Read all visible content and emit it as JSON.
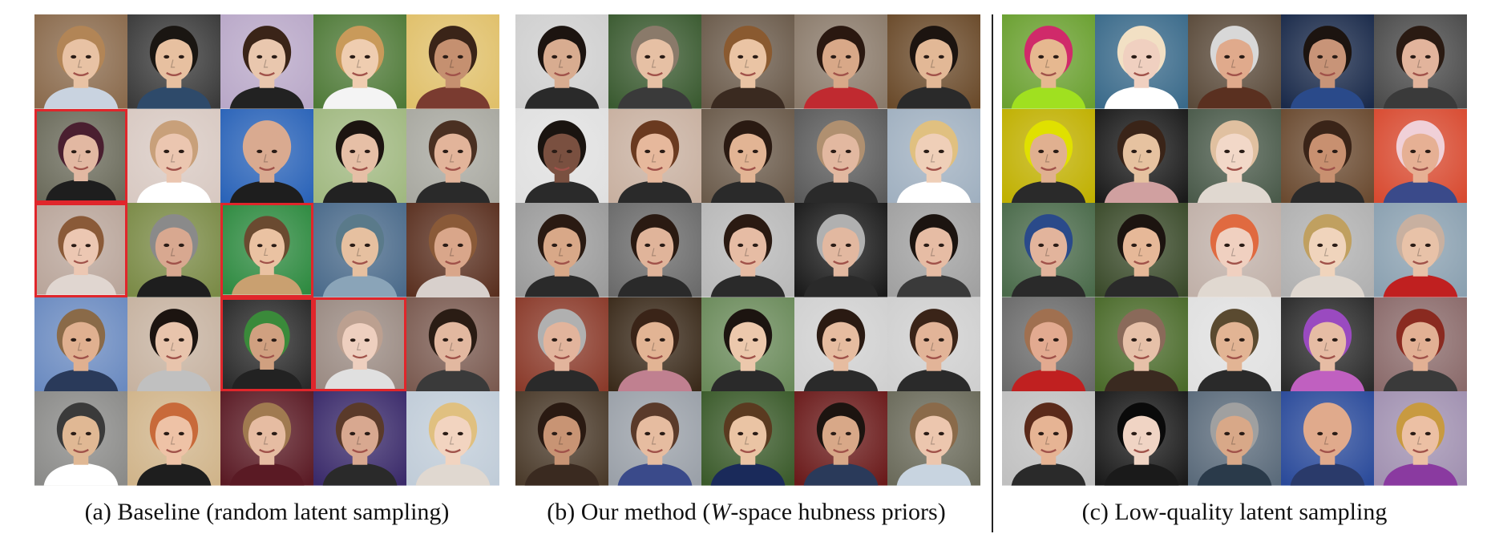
{
  "panels": [
    {
      "id": "a",
      "caption": "(a) Baseline (random latent sampling)",
      "flagged_color": "#e0262b",
      "tiles": [
        {
          "bg": "#8a6a4c",
          "skin": "#e8c2a4",
          "hair": "#b28556",
          "cloth": "#c9d3e0",
          "flag": false
        },
        {
          "bg": "#3a3a3a",
          "skin": "#e7c0a0",
          "hair": "#1a1612",
          "cloth": "#2e4a6a",
          "flag": false
        },
        {
          "bg": "#b9a8c8",
          "skin": "#e9c7ae",
          "hair": "#3a2418",
          "cloth": "#222222",
          "flag": false
        },
        {
          "bg": "#4f7a38",
          "skin": "#efcdb0",
          "hair": "#c99a5a",
          "cloth": "#f4f4f4",
          "flag": false
        },
        {
          "bg": "#e0c06a",
          "skin": "#c59070",
          "hair": "#3a2418",
          "cloth": "#7a3b30",
          "flag": false
        },
        {
          "bg": "#6b6b5b",
          "skin": "#e2b8a2",
          "hair": "#4a1f30",
          "cloth": "#1e1e1e",
          "flag": true
        },
        {
          "bg": "#d8c9c2",
          "skin": "#ebc6b0",
          "hair": "#c8a07a",
          "cloth": "#ffffff",
          "flag": false
        },
        {
          "bg": "#2a63b8",
          "skin": "#d9aa90",
          "hair": "#d9aa90",
          "cloth": "#1e1e1e",
          "flag": false
        },
        {
          "bg": "#a0b880",
          "skin": "#e6bfa6",
          "hair": "#1c1410",
          "cloth": "#222222",
          "flag": false
        },
        {
          "bg": "#a8a8a0",
          "skin": "#e2b49a",
          "hair": "#4a3022",
          "cloth": "#2a2a2a",
          "flag": false
        },
        {
          "bg": "#b9a59a",
          "skin": "#ecc7b2",
          "hair": "#8a5a38",
          "cloth": "#e0d6d0",
          "flag": true
        },
        {
          "bg": "#7a8a46",
          "skin": "#d8a890",
          "hair": "#8a8a8a",
          "cloth": "#1e1e1e",
          "flag": false
        },
        {
          "bg": "#2e8a40",
          "skin": "#eac2a2",
          "hair": "#6a4a30",
          "cloth": "#c9a070",
          "flag": true
        },
        {
          "bg": "#4a6a8a",
          "skin": "#e6c0a0",
          "hair": "#5a7a8a",
          "cloth": "#8aa4b8",
          "flag": false
        },
        {
          "bg": "#5a3020",
          "skin": "#d9a68a",
          "hair": "#8a5a38",
          "cloth": "#d8d0cc",
          "flag": false
        },
        {
          "bg": "#6a8ac0",
          "skin": "#e0b090",
          "hair": "#8a6a48",
          "cloth": "#2a3a5a",
          "flag": false
        },
        {
          "bg": "#c6b2a0",
          "skin": "#e8c4ac",
          "hair": "#1c1410",
          "cloth": "#c0c0c0",
          "flag": false
        },
        {
          "bg": "#2a2a2a",
          "skin": "#d0a080",
          "hair": "#3a8a3a",
          "cloth": "#222222",
          "flag": true
        },
        {
          "bg": "#9a8a82",
          "skin": "#eecfbf",
          "hair": "#bca090",
          "cloth": "#e0e0e0",
          "flag": true
        },
        {
          "bg": "#7a5a50",
          "skin": "#e2b8a0",
          "hair": "#2a1c14",
          "cloth": "#3a3a3a",
          "flag": false
        },
        {
          "bg": "#8a8a88",
          "skin": "#e0b894",
          "hair": "#3a3a3a",
          "cloth": "#ffffff",
          "flag": false
        },
        {
          "bg": "#d0b48a",
          "skin": "#eec2a6",
          "hair": "#c86a3a",
          "cloth": "#1e1e1e",
          "flag": false
        },
        {
          "bg": "#5a1a24",
          "skin": "#e6bca2",
          "hair": "#a07a50",
          "cloth": "#5a1a24",
          "flag": false
        },
        {
          "bg": "#3a2a6a",
          "skin": "#d8a890",
          "hair": "#5a3a2a",
          "cloth": "#2a2a2a",
          "flag": false
        },
        {
          "bg": "#c0ccd8",
          "skin": "#f2d4c0",
          "hair": "#e0c080",
          "cloth": "#e0d8d0",
          "flag": false
        }
      ]
    },
    {
      "id": "b",
      "caption_prefix": "(b) Our method (",
      "caption_italic": "W",
      "caption_suffix": "-space hubness priors)",
      "tiles": [
        {
          "bg": "#cfcfcf",
          "skin": "#d8ac90",
          "hair": "#1c1410",
          "cloth": "#2a2a2a",
          "flag": false
        },
        {
          "bg": "#3a5a30",
          "skin": "#e6c0a4",
          "hair": "#8a7a6a",
          "cloth": "#3a3a3a",
          "flag": false
        },
        {
          "bg": "#6a5a4a",
          "skin": "#eac4a4",
          "hair": "#8a5a30",
          "cloth": "#3a2a20",
          "flag": false
        },
        {
          "bg": "#8a7a6a",
          "skin": "#d8a888",
          "hair": "#2a1810",
          "cloth": "#c02a30",
          "flag": false
        },
        {
          "bg": "#6a4a2a",
          "skin": "#e2b896",
          "hair": "#1c1410",
          "cloth": "#2a2a2a",
          "flag": false
        },
        {
          "bg": "#e0e0e0",
          "skin": "#7a5040",
          "hair": "#1a1410",
          "cloth": "#2a2a2a",
          "flag": false
        },
        {
          "bg": "#c8b0a0",
          "skin": "#e6b89c",
          "hair": "#6a3a20",
          "cloth": "#2a2a2a",
          "flag": false
        },
        {
          "bg": "#6a5a4a",
          "skin": "#e2b494",
          "hair": "#2a1a12",
          "cloth": "#2a2a2a",
          "flag": false
        },
        {
          "bg": "#5a5a5a",
          "skin": "#e2b8a0",
          "hair": "#b09070",
          "cloth": "#2a2a2a",
          "flag": false
        },
        {
          "bg": "#a0b0c0",
          "skin": "#efcfb8",
          "hair": "#e0c080",
          "cloth": "#ffffff",
          "flag": false
        },
        {
          "bg": "#9a9a9a",
          "skin": "#d8a888",
          "hair": "#2a1a12",
          "cloth": "#2a2a2a",
          "flag": false
        },
        {
          "bg": "#6a6a6a",
          "skin": "#e0b49a",
          "hair": "#2a1a12",
          "cloth": "#2a2a2a",
          "flag": false
        },
        {
          "bg": "#b8b8b8",
          "skin": "#e6bca4",
          "hair": "#2a1a12",
          "cloth": "#2a2a2a",
          "flag": false
        },
        {
          "bg": "#1a1a1a",
          "skin": "#e2b8a0",
          "hair": "#b0b0b0",
          "cloth": "#2a2a2a",
          "flag": false
        },
        {
          "bg": "#a0a0a0",
          "skin": "#e6bca4",
          "hair": "#1c1410",
          "cloth": "#3a3a3a",
          "flag": false
        },
        {
          "bg": "#8a3a2a",
          "skin": "#e2b49c",
          "hair": "#b0b0b0",
          "cloth": "#2a2a2a",
          "flag": false
        },
        {
          "bg": "#3a2a1a",
          "skin": "#e2b494",
          "hair": "#3a2418",
          "cloth": "#c08090",
          "flag": false
        },
        {
          "bg": "#6a8a5a",
          "skin": "#ecc8ac",
          "hair": "#1c1410",
          "cloth": "#2a2a2a",
          "flag": false
        },
        {
          "bg": "#d0d0d0",
          "skin": "#e6bca0",
          "hair": "#2a1a12",
          "cloth": "#2a2a2a",
          "flag": false
        },
        {
          "bg": "#cfcfcf",
          "skin": "#e2b498",
          "hair": "#3a2418",
          "cloth": "#2a2a2a",
          "flag": false
        },
        {
          "bg": "#4a3a2a",
          "skin": "#c89474",
          "hair": "#2a1a12",
          "cloth": "#3a2a20",
          "flag": false
        },
        {
          "bg": "#9aa0a8",
          "skin": "#e6bca0",
          "hair": "#5a3a2a",
          "cloth": "#3a4a8a",
          "flag": false
        },
        {
          "bg": "#3a5a2a",
          "skin": "#eac4a4",
          "hair": "#5a3a20",
          "cloth": "#1a2a5a",
          "flag": false
        },
        {
          "bg": "#6a1a1a",
          "skin": "#d8a888",
          "hair": "#1c1410",
          "cloth": "#2a3a5a",
          "flag": false
        },
        {
          "bg": "#6a6a5a",
          "skin": "#ecc6ae",
          "hair": "#8a6a4a",
          "cloth": "#c8d4e0",
          "flag": false
        }
      ]
    },
    {
      "id": "c",
      "caption": "(c) Low-quality latent sampling",
      "tiles": [
        {
          "bg": "#6aa030",
          "skin": "#e6b890",
          "hair": "#d02a6a",
          "cloth": "#a0e020",
          "flag": false
        },
        {
          "bg": "#3a6a8a",
          "skin": "#f0d0c0",
          "hair": "#f2e0c4",
          "cloth": "#ffffff",
          "flag": false
        },
        {
          "bg": "#5a4a3a",
          "skin": "#e0aa8c",
          "hair": "#d8d8d8",
          "cloth": "#5a3020",
          "flag": false
        },
        {
          "bg": "#1a2a4a",
          "skin": "#c89478",
          "hair": "#1c1410",
          "cloth": "#2a4a8a",
          "flag": false
        },
        {
          "bg": "#4a4a4a",
          "skin": "#e2b49c",
          "hair": "#2a1a12",
          "cloth": "#3a3a3a",
          "flag": false
        },
        {
          "bg": "#c0b000",
          "skin": "#e0b090",
          "hair": "#e0e000",
          "cloth": "#2a2a2a",
          "flag": false
        },
        {
          "bg": "#1a1a1a",
          "skin": "#e6c2a0",
          "hair": "#3a2418",
          "cloth": "#d0a0a0",
          "flag": false
        },
        {
          "bg": "#4a5a4a",
          "skin": "#f2d8c8",
          "hair": "#e0c0a0",
          "cloth": "#e0d8d0",
          "flag": false
        },
        {
          "bg": "#6a4a30",
          "skin": "#c89070",
          "hair": "#3a2418",
          "cloth": "#2a2a2a",
          "flag": false
        },
        {
          "bg": "#d84a30",
          "skin": "#e6b094",
          "hair": "#f0d0d8",
          "cloth": "#3a4a8a",
          "flag": false
        },
        {
          "bg": "#4a6a4a",
          "skin": "#e2b49c",
          "hair": "#2a4a8a",
          "cloth": "#2a2a2a",
          "flag": false
        },
        {
          "bg": "#3a4a2a",
          "skin": "#e6b898",
          "hair": "#1c1410",
          "cloth": "#2a2a2a",
          "flag": false
        },
        {
          "bg": "#c0b0a8",
          "skin": "#f0d0c0",
          "hair": "#e06a40",
          "cloth": "#e0d8d0",
          "flag": false
        },
        {
          "bg": "#b0b0b0",
          "skin": "#f0d4bc",
          "hair": "#c0a060",
          "cloth": "#e0d8d0",
          "flag": false
        },
        {
          "bg": "#8aa0b0",
          "skin": "#e8c2a8",
          "hair": "#c8b0a0",
          "cloth": "#c02020",
          "flag": false
        },
        {
          "bg": "#6a6a6a",
          "skin": "#e2aa90",
          "hair": "#a07050",
          "cloth": "#c02020",
          "flag": false
        },
        {
          "bg": "#4a6a2a",
          "skin": "#e6c0a8",
          "hair": "#8a6a5a",
          "cloth": "#3a2a20",
          "flag": false
        },
        {
          "bg": "#e0e0e0",
          "skin": "#e2b494",
          "hair": "#5a4a30",
          "cloth": "#2a2a2a",
          "flag": false
        },
        {
          "bg": "#2a2a2a",
          "skin": "#e6bca4",
          "hair": "#9a4ac0",
          "cloth": "#c060c0",
          "flag": false
        },
        {
          "bg": "#8a6a6a",
          "skin": "#e2b094",
          "hair": "#8a2a20",
          "cloth": "#3a3a3a",
          "flag": false
        },
        {
          "bg": "#c0c0c0",
          "skin": "#e6b494",
          "hair": "#5a2a1a",
          "cloth": "#2a2a2a",
          "flag": false
        },
        {
          "bg": "#1a1a1a",
          "skin": "#f0d4c4",
          "hair": "#0a0a0a",
          "cloth": "#1a1a1a",
          "flag": false
        },
        {
          "bg": "#5a6a7a",
          "skin": "#d8a888",
          "hair": "#a0a0a0",
          "cloth": "#2a3a4a",
          "flag": false
        },
        {
          "bg": "#2a4a9a",
          "skin": "#e0aa8c",
          "hair": "#e0aa8c",
          "cloth": "#2a3a6a",
          "flag": false
        },
        {
          "bg": "#a090b0",
          "skin": "#ecc0a4",
          "hair": "#c89a40",
          "cloth": "#8a3aa0",
          "flag": false
        }
      ]
    }
  ]
}
